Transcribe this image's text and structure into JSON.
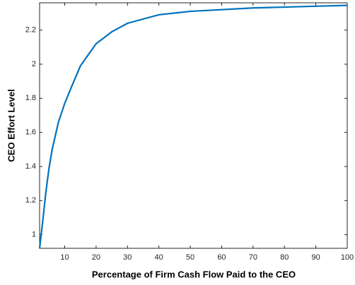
{
  "chart_data": {
    "type": "line",
    "x_label": "Percentage of Firm Cash Flow Paid to the CEO",
    "y_label": "CEO Effort Level",
    "x": [
      2,
      3,
      4,
      5,
      6,
      8,
      10,
      12,
      15,
      20,
      25,
      30,
      40,
      50,
      60,
      70,
      80,
      90,
      100
    ],
    "series": [
      {
        "color": "#0072bd",
        "values": [
          0.92,
          1.08,
          1.25,
          1.39,
          1.5,
          1.66,
          1.77,
          1.86,
          1.99,
          2.12,
          2.19,
          2.24,
          2.29,
          2.31,
          2.32,
          2.33,
          2.335,
          2.34,
          2.345
        ]
      }
    ],
    "xlim": [
      2,
      100
    ],
    "xticks": [
      10,
      20,
      30,
      40,
      50,
      60,
      70,
      80,
      90,
      100
    ],
    "ylim": [
      0.92,
      2.36
    ],
    "yticks": [
      1,
      1.2,
      1.4,
      1.6,
      1.8,
      2,
      2.2
    ],
    "grid": false
  }
}
